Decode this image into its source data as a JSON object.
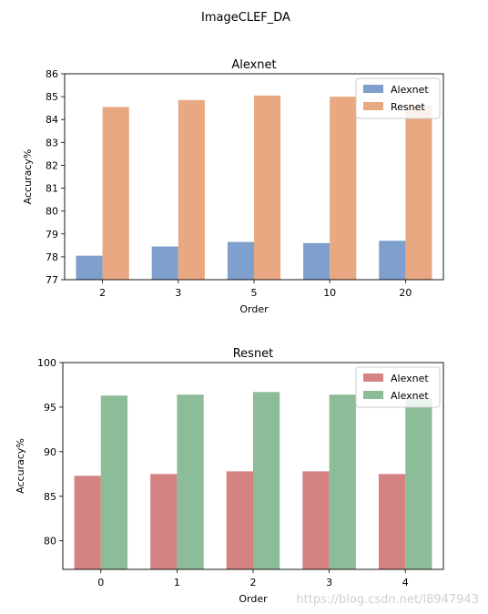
{
  "figure": {
    "suptitle": "ImageCLEF_DA",
    "watermark": "https://blog.csdn.net/l8947943"
  },
  "chart_data": [
    {
      "type": "bar",
      "title": "Alexnet",
      "xlabel": "Order",
      "ylabel": "Accuracy%",
      "categories": [
        "2",
        "3",
        "5",
        "10",
        "20"
      ],
      "ylim": [
        77,
        86
      ],
      "yticks": [
        "77",
        "78",
        "79",
        "80",
        "81",
        "82",
        "83",
        "84",
        "85",
        "86"
      ],
      "legend_position": "upper right",
      "series": [
        {
          "name": "Alexnet",
          "color": "#7f9fcc",
          "values": [
            78.05,
            78.45,
            78.65,
            78.6,
            78.7
          ]
        },
        {
          "name": "Resnet",
          "color": "#e8a882",
          "values": [
            84.55,
            84.85,
            85.05,
            85.0,
            84.6
          ]
        }
      ]
    },
    {
      "type": "bar",
      "title": "Resnet",
      "xlabel": "Order",
      "ylabel": "Accuracy%",
      "categories": [
        "0",
        "1",
        "2",
        "3",
        "4"
      ],
      "ylim": [
        76.8,
        100
      ],
      "yticks": [
        "80",
        "85",
        "90",
        "95",
        "100"
      ],
      "legend_position": "upper right",
      "series": [
        {
          "name": "Alexnet",
          "color": "#d48282",
          "values": [
            87.3,
            87.5,
            87.8,
            87.8,
            87.5
          ]
        },
        {
          "name": "Alexnet",
          "color": "#8dbc98",
          "values": [
            96.3,
            96.4,
            96.7,
            96.4,
            96.0
          ]
        }
      ]
    }
  ]
}
